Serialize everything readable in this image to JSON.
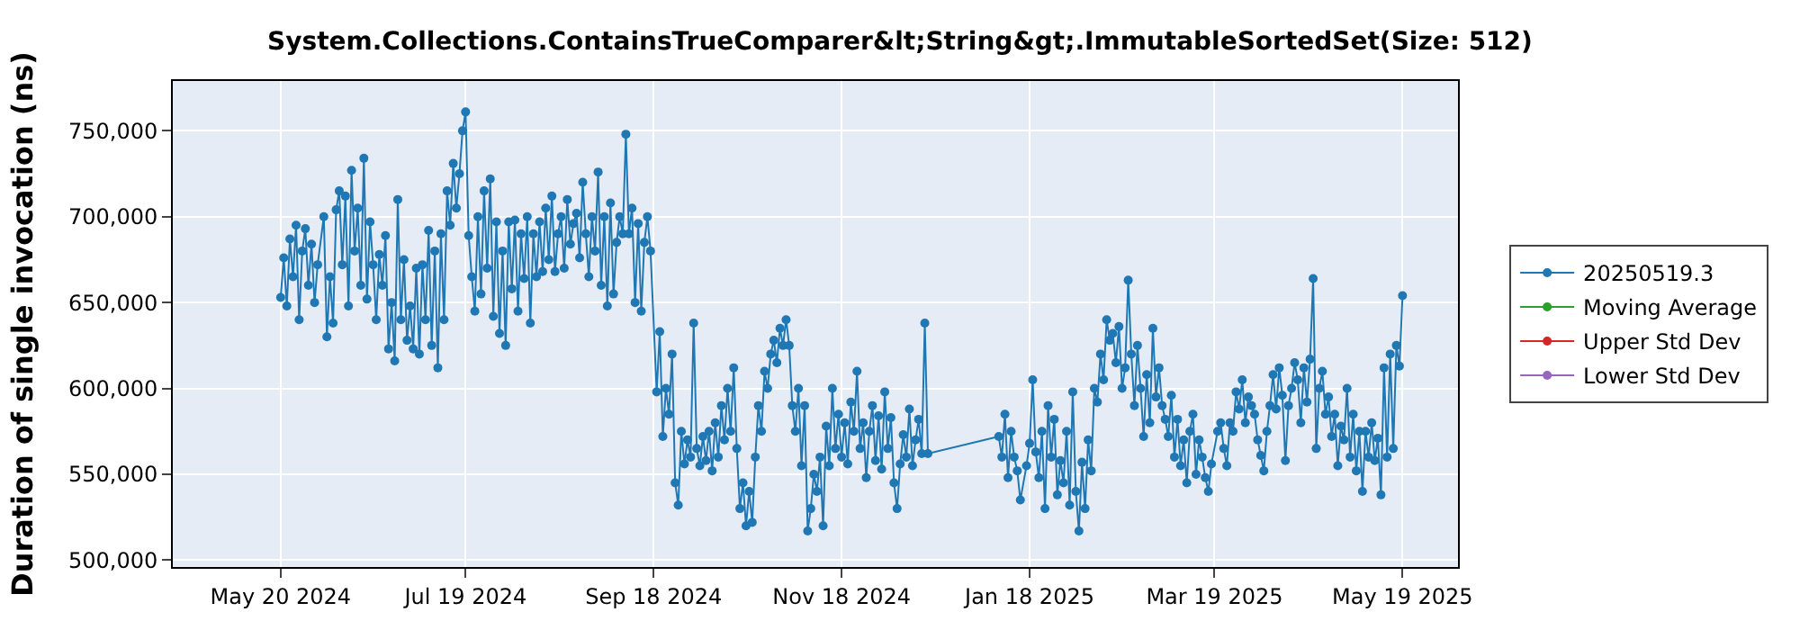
{
  "chart_data": {
    "type": "line",
    "title": "System.Collections.ContainsTrueComparer&lt;String&gt;.ImmutableSortedSet(Size: 512)",
    "ylabel": "Duration of single invocation (ns)",
    "xlim": [
      "2024-04-15",
      "2025-06-06"
    ],
    "xticks": [
      {
        "value": "2024-05-20",
        "label": "May 20 2024"
      },
      {
        "value": "2024-07-19",
        "label": "Jul 19 2024"
      },
      {
        "value": "2024-09-18",
        "label": "Sep 18 2024"
      },
      {
        "value": "2024-11-18",
        "label": "Nov 18 2024"
      },
      {
        "value": "2025-01-18",
        "label": "Jan 18 2025"
      },
      {
        "value": "2025-03-19",
        "label": "Mar 19 2025"
      },
      {
        "value": "2025-05-19",
        "label": "May 19 2025"
      }
    ],
    "ylim": [
      496000,
      779000
    ],
    "yticks": [
      {
        "value": 500000,
        "label": "500,000"
      },
      {
        "value": 550000,
        "label": "550,000"
      },
      {
        "value": 600000,
        "label": "600,000"
      },
      {
        "value": 650000,
        "label": "650,000"
      },
      {
        "value": 700000,
        "label": "700,000"
      },
      {
        "value": 750000,
        "label": "750,000"
      }
    ],
    "grid": true,
    "legend": "right",
    "marker": "circle",
    "line_style": "solid",
    "series": [
      {
        "name": "20250519.3",
        "color": "#1f77b4",
        "x": [
          "2024-05-20",
          "2024-05-21",
          "2024-05-22",
          "2024-05-23",
          "2024-05-24",
          "2024-05-25",
          "2024-05-26",
          "2024-05-27",
          "2024-05-28",
          "2024-05-29",
          "2024-05-30",
          "2024-05-31",
          "2024-06-01",
          "2024-06-03",
          "2024-06-04",
          "2024-06-05",
          "2024-06-06",
          "2024-06-07",
          "2024-06-08",
          "2024-06-09",
          "2024-06-10",
          "2024-06-11",
          "2024-06-12",
          "2024-06-13",
          "2024-06-14",
          "2024-06-15",
          "2024-06-16",
          "2024-06-17",
          "2024-06-18",
          "2024-06-19",
          "2024-06-20",
          "2024-06-21",
          "2024-06-22",
          "2024-06-23",
          "2024-06-24",
          "2024-06-25",
          "2024-06-26",
          "2024-06-27",
          "2024-06-28",
          "2024-06-29",
          "2024-06-30",
          "2024-07-01",
          "2024-07-02",
          "2024-07-03",
          "2024-07-04",
          "2024-07-05",
          "2024-07-06",
          "2024-07-07",
          "2024-07-08",
          "2024-07-09",
          "2024-07-10",
          "2024-07-11",
          "2024-07-12",
          "2024-07-13",
          "2024-07-14",
          "2024-07-15",
          "2024-07-16",
          "2024-07-17",
          "2024-07-18",
          "2024-07-19",
          "2024-07-20",
          "2024-07-21",
          "2024-07-22",
          "2024-07-23",
          "2024-07-24",
          "2024-07-25",
          "2024-07-26",
          "2024-07-27",
          "2024-07-28",
          "2024-07-29",
          "2024-07-30",
          "2024-07-31",
          "2024-08-01",
          "2024-08-02",
          "2024-08-03",
          "2024-08-04",
          "2024-08-05",
          "2024-08-06",
          "2024-08-07",
          "2024-08-08",
          "2024-08-09",
          "2024-08-10",
          "2024-08-11",
          "2024-08-12",
          "2024-08-13",
          "2024-08-14",
          "2024-08-15",
          "2024-08-16",
          "2024-08-17",
          "2024-08-18",
          "2024-08-19",
          "2024-08-20",
          "2024-08-21",
          "2024-08-22",
          "2024-08-23",
          "2024-08-24",
          "2024-08-25",
          "2024-08-26",
          "2024-08-27",
          "2024-08-28",
          "2024-08-29",
          "2024-08-30",
          "2024-08-31",
          "2024-09-01",
          "2024-09-02",
          "2024-09-03",
          "2024-09-04",
          "2024-09-05",
          "2024-09-06",
          "2024-09-07",
          "2024-09-08",
          "2024-09-09",
          "2024-09-10",
          "2024-09-11",
          "2024-09-12",
          "2024-09-13",
          "2024-09-14",
          "2024-09-15",
          "2024-09-16",
          "2024-09-17",
          "2024-09-19",
          "2024-09-20",
          "2024-09-21",
          "2024-09-22",
          "2024-09-23",
          "2024-09-24",
          "2024-09-25",
          "2024-09-26",
          "2024-09-27",
          "2024-09-28",
          "2024-09-29",
          "2024-09-30",
          "2024-10-01",
          "2024-10-02",
          "2024-10-03",
          "2024-10-04",
          "2024-10-05",
          "2024-10-06",
          "2024-10-07",
          "2024-10-08",
          "2024-10-09",
          "2024-10-10",
          "2024-10-11",
          "2024-10-12",
          "2024-10-13",
          "2024-10-14",
          "2024-10-15",
          "2024-10-16",
          "2024-10-17",
          "2024-10-18",
          "2024-10-19",
          "2024-10-20",
          "2024-10-21",
          "2024-10-22",
          "2024-10-23",
          "2024-10-24",
          "2024-10-25",
          "2024-10-26",
          "2024-10-27",
          "2024-10-28",
          "2024-10-29",
          "2024-10-30",
          "2024-10-31",
          "2024-11-01",
          "2024-11-02",
          "2024-11-03",
          "2024-11-04",
          "2024-11-05",
          "2024-11-06",
          "2024-11-07",
          "2024-11-08",
          "2024-11-09",
          "2024-11-10",
          "2024-11-11",
          "2024-11-12",
          "2024-11-13",
          "2024-11-14",
          "2024-11-15",
          "2024-11-16",
          "2024-11-17",
          "2024-11-18",
          "2024-11-19",
          "2024-11-20",
          "2024-11-21",
          "2024-11-22",
          "2024-11-23",
          "2024-11-24",
          "2024-11-25",
          "2024-11-26",
          "2024-11-27",
          "2024-11-28",
          "2024-11-29",
          "2024-11-30",
          "2024-12-01",
          "2024-12-02",
          "2024-12-03",
          "2024-12-04",
          "2024-12-05",
          "2024-12-06",
          "2024-12-07",
          "2024-12-08",
          "2024-12-09",
          "2024-12-10",
          "2024-12-11",
          "2024-12-12",
          "2024-12-13",
          "2024-12-14",
          "2024-12-15",
          "2024-12-16",
          "2025-01-08",
          "2025-01-09",
          "2025-01-10",
          "2025-01-11",
          "2025-01-12",
          "2025-01-13",
          "2025-01-14",
          "2025-01-15",
          "2025-01-17",
          "2025-01-18",
          "2025-01-19",
          "2025-01-20",
          "2025-01-21",
          "2025-01-22",
          "2025-01-23",
          "2025-01-24",
          "2025-01-25",
          "2025-01-26",
          "2025-01-27",
          "2025-01-28",
          "2025-01-29",
          "2025-01-30",
          "2025-01-31",
          "2025-02-01",
          "2025-02-02",
          "2025-02-03",
          "2025-02-04",
          "2025-02-05",
          "2025-02-06",
          "2025-02-07",
          "2025-02-08",
          "2025-02-09",
          "2025-02-10",
          "2025-02-11",
          "2025-02-12",
          "2025-02-13",
          "2025-02-14",
          "2025-02-15",
          "2025-02-16",
          "2025-02-17",
          "2025-02-18",
          "2025-02-19",
          "2025-02-20",
          "2025-02-21",
          "2025-02-22",
          "2025-02-23",
          "2025-02-24",
          "2025-02-25",
          "2025-02-26",
          "2025-02-27",
          "2025-02-28",
          "2025-03-01",
          "2025-03-02",
          "2025-03-03",
          "2025-03-04",
          "2025-03-05",
          "2025-03-06",
          "2025-03-07",
          "2025-03-08",
          "2025-03-09",
          "2025-03-10",
          "2025-03-11",
          "2025-03-12",
          "2025-03-13",
          "2025-03-14",
          "2025-03-15",
          "2025-03-16",
          "2025-03-17",
          "2025-03-18",
          "2025-03-20",
          "2025-03-21",
          "2025-03-22",
          "2025-03-23",
          "2025-03-24",
          "2025-03-25",
          "2025-03-26",
          "2025-03-27",
          "2025-03-28",
          "2025-03-29",
          "2025-03-30",
          "2025-03-31",
          "2025-04-01",
          "2025-04-02",
          "2025-04-03",
          "2025-04-04",
          "2025-04-05",
          "2025-04-06",
          "2025-04-07",
          "2025-04-08",
          "2025-04-09",
          "2025-04-10",
          "2025-04-11",
          "2025-04-12",
          "2025-04-13",
          "2025-04-14",
          "2025-04-15",
          "2025-04-16",
          "2025-04-17",
          "2025-04-18",
          "2025-04-19",
          "2025-04-20",
          "2025-04-21",
          "2025-04-22",
          "2025-04-23",
          "2025-04-24",
          "2025-04-25",
          "2025-04-26",
          "2025-04-27",
          "2025-04-28",
          "2025-04-29",
          "2025-04-30",
          "2025-05-01",
          "2025-05-02",
          "2025-05-03",
          "2025-05-04",
          "2025-05-05",
          "2025-05-06",
          "2025-05-07",
          "2025-05-08",
          "2025-05-09",
          "2025-05-10",
          "2025-05-11",
          "2025-05-12",
          "2025-05-13",
          "2025-05-14",
          "2025-05-15",
          "2025-05-16",
          "2025-05-17",
          "2025-05-18",
          "2025-05-19"
        ],
        "values": [
          653000,
          676000,
          648000,
          687000,
          665000,
          695000,
          640000,
          680000,
          693000,
          660000,
          684000,
          650000,
          672000,
          700000,
          630000,
          665000,
          638000,
          704000,
          715000,
          672000,
          712000,
          648000,
          727000,
          680000,
          705000,
          660000,
          734000,
          652000,
          697000,
          672000,
          640000,
          678000,
          660000,
          689000,
          623000,
          650000,
          616000,
          710000,
          640000,
          675000,
          628000,
          648000,
          623000,
          670000,
          620000,
          672000,
          640000,
          692000,
          625000,
          680000,
          612000,
          690000,
          640000,
          715000,
          695000,
          731000,
          705000,
          725000,
          750000,
          761000,
          689000,
          665000,
          645000,
          700000,
          655000,
          715000,
          670000,
          722000,
          642000,
          697000,
          632000,
          680000,
          625000,
          697000,
          658000,
          698000,
          645000,
          690000,
          664000,
          700000,
          638000,
          690000,
          665000,
          697000,
          668000,
          705000,
          675000,
          712000,
          668000,
          690000,
          700000,
          670000,
          710000,
          684000,
          696000,
          702000,
          676000,
          720000,
          690000,
          665000,
          700000,
          680000,
          726000,
          660000,
          700000,
          648000,
          708000,
          655000,
          685000,
          700000,
          690000,
          748000,
          690000,
          705000,
          650000,
          696000,
          645000,
          685000,
          700000,
          680000,
          598000,
          633000,
          572000,
          600000,
          585000,
          620000,
          545000,
          532000,
          575000,
          556000,
          570000,
          560000,
          638000,
          565000,
          555000,
          572000,
          558000,
          575000,
          552000,
          580000,
          560000,
          590000,
          570000,
          600000,
          575000,
          612000,
          565000,
          530000,
          545000,
          520000,
          540000,
          522000,
          560000,
          590000,
          575000,
          610000,
          600000,
          620000,
          628000,
          615000,
          635000,
          625000,
          640000,
          625000,
          590000,
          575000,
          600000,
          555000,
          590000,
          517000,
          530000,
          550000,
          540000,
          560000,
          520000,
          578000,
          555000,
          600000,
          565000,
          585000,
          560000,
          580000,
          556000,
          592000,
          575000,
          610000,
          565000,
          580000,
          548000,
          575000,
          590000,
          558000,
          584000,
          553000,
          598000,
          565000,
          583000,
          545000,
          530000,
          556000,
          573000,
          560000,
          588000,
          555000,
          570000,
          582000,
          562000,
          638000,
          562000,
          572000,
          560000,
          585000,
          548000,
          575000,
          560000,
          552000,
          535000,
          555000,
          568000,
          605000,
          563000,
          548000,
          575000,
          530000,
          590000,
          560000,
          582000,
          538000,
          558000,
          545000,
          575000,
          532000,
          598000,
          540000,
          517000,
          557000,
          530000,
          570000,
          552000,
          600000,
          592000,
          620000,
          605000,
          640000,
          628000,
          632000,
          615000,
          636000,
          600000,
          612000,
          663000,
          620000,
          590000,
          625000,
          600000,
          572000,
          608000,
          580000,
          635000,
          595000,
          612000,
          590000,
          582000,
          572000,
          596000,
          560000,
          582000,
          555000,
          570000,
          545000,
          575000,
          585000,
          550000,
          570000,
          560000,
          548000,
          540000,
          556000,
          575000,
          580000,
          565000,
          555000,
          580000,
          575000,
          598000,
          588000,
          605000,
          580000,
          595000,
          590000,
          585000,
          570000,
          561000,
          552000,
          575000,
          590000,
          608000,
          588000,
          612000,
          596000,
          558000,
          590000,
          600000,
          615000,
          605000,
          580000,
          612000,
          592000,
          617000,
          664000,
          565000,
          600000,
          610000,
          585000,
          595000,
          572000,
          585000,
          555000,
          578000,
          570000,
          600000,
          560000,
          585000,
          552000,
          575000,
          540000,
          575000,
          560000,
          580000,
          558000,
          571000,
          538000,
          612000,
          560000,
          620000,
          565000,
          625000,
          613000,
          654000
        ]
      },
      {
        "name": "Moving Average",
        "color": "#2ca02c"
      },
      {
        "name": "Upper Std Dev",
        "color": "#d62728"
      },
      {
        "name": "Lower Std Dev",
        "color": "#9467bd"
      }
    ]
  }
}
